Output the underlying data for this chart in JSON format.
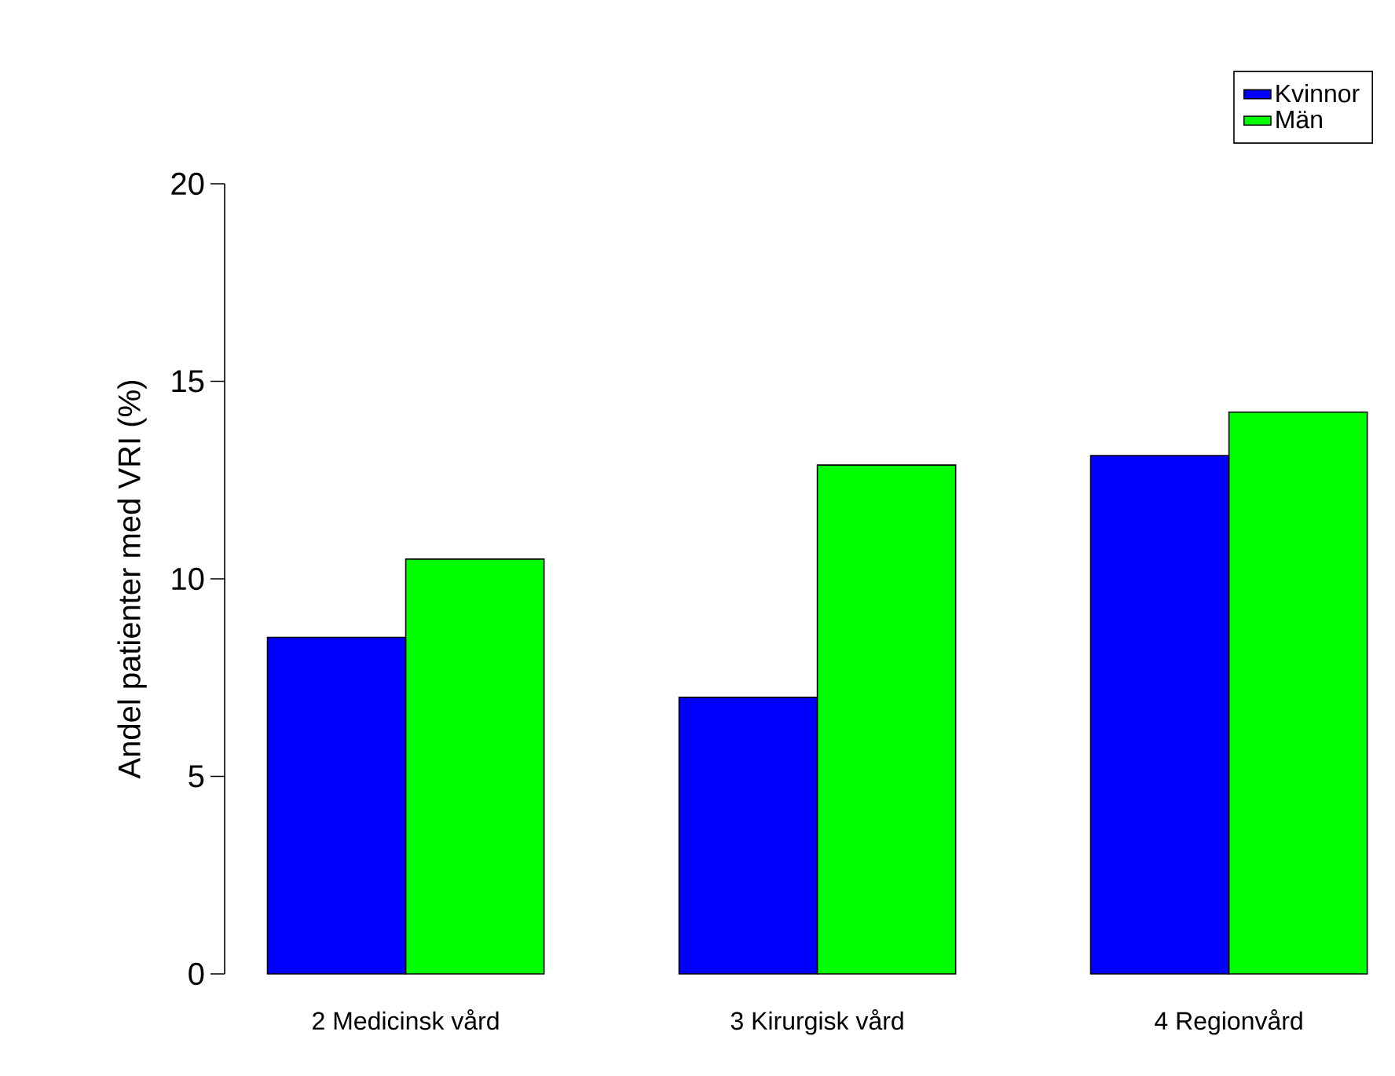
{
  "chart_data": {
    "type": "bar",
    "ylabel": "Andel patienter med VRI (%)",
    "categories": [
      "2 Medicinsk vård",
      "3 Kirurgisk vård",
      "4 Regionvård"
    ],
    "series": [
      {
        "name": "Kvinnor",
        "color": "#0000ff",
        "values": [
          8.52,
          7.0,
          13.12
        ]
      },
      {
        "name": "Män",
        "color": "#00ff00",
        "values": [
          10.5,
          12.88,
          14.22
        ]
      }
    ],
    "ylim": [
      0,
      20
    ],
    "yticks": [
      0,
      5,
      10,
      15,
      20
    ],
    "legend": "top right"
  }
}
